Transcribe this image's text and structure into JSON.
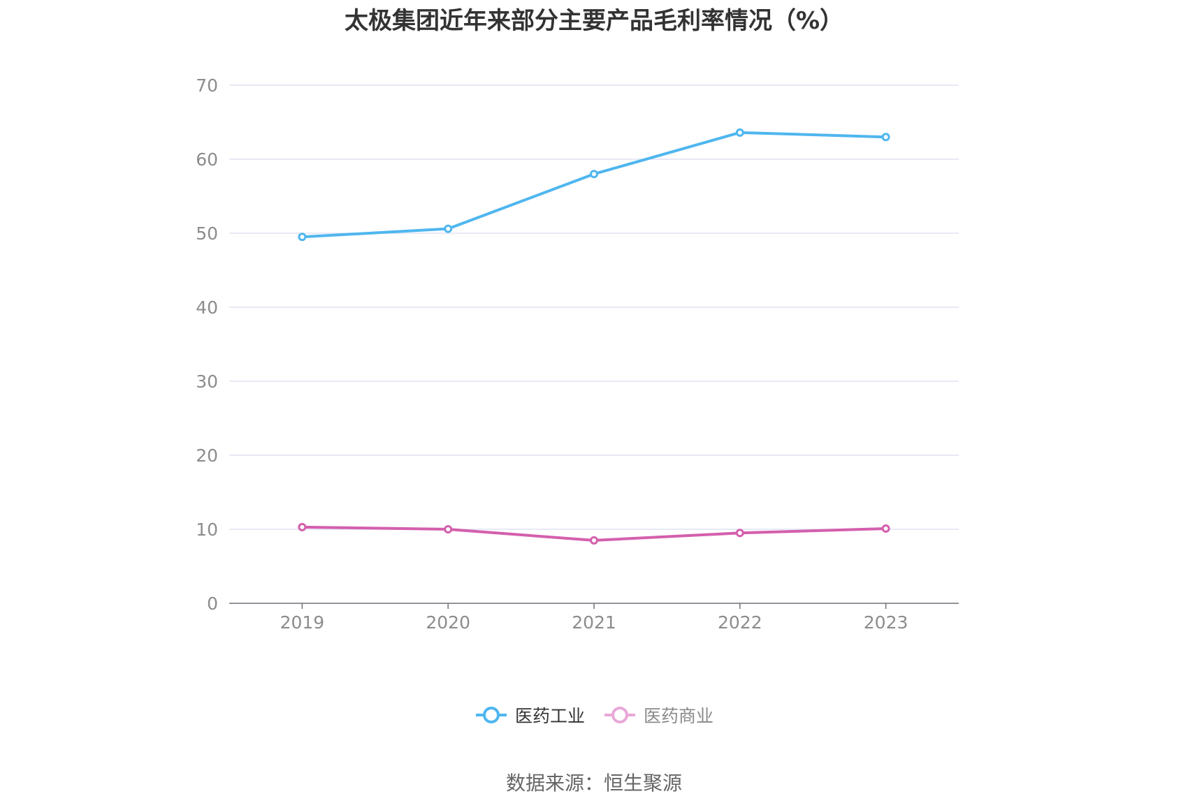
{
  "title": "太极集团近年来部分主要产品毛利率情况（%）",
  "source": "数据来源：恒生聚源",
  "legend": [
    {
      "label": "医药工业",
      "color": "#4fb6ef",
      "active": true
    },
    {
      "label": "医药商业",
      "color": "#e9a8d8",
      "active": false
    }
  ],
  "chart_data": {
    "type": "line",
    "title": "太极集团近年来部分主要产品毛利率情况（%）",
    "xlabel": "",
    "ylabel": "",
    "categories": [
      "2019",
      "2020",
      "2021",
      "2022",
      "2023"
    ],
    "yticks": [
      "0",
      "10",
      "20",
      "30",
      "40",
      "50",
      "60",
      "70"
    ],
    "ylim": [
      0,
      70
    ],
    "grid": true,
    "legend_position": "bottom",
    "series": [
      {
        "name": "医药工业",
        "color": "#4fb6ef",
        "values": [
          49.5,
          50.6,
          58.0,
          63.6,
          63.0
        ]
      },
      {
        "name": "医药商业",
        "color": "#d45fad",
        "values": [
          10.3,
          10.0,
          8.5,
          9.5,
          10.1
        ]
      }
    ]
  }
}
